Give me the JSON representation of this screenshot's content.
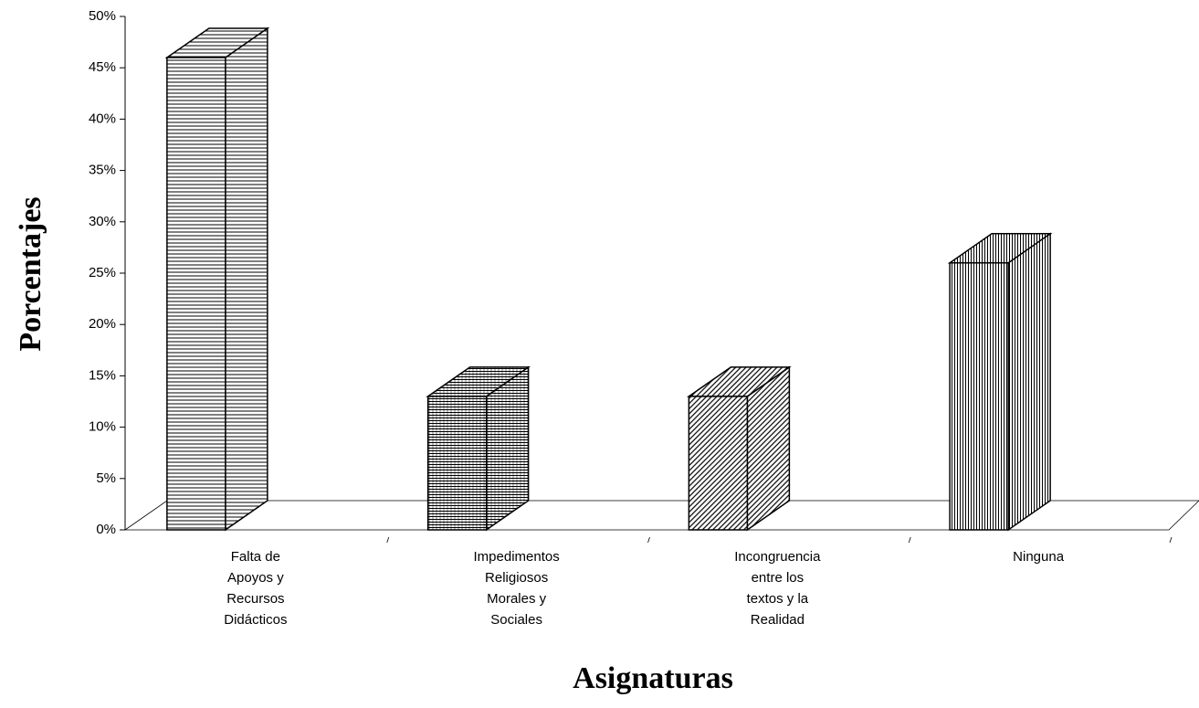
{
  "chart_data": {
    "type": "bar3d",
    "x_label": "Asignaturas",
    "y_label": "Porcentajes",
    "categories": [
      [
        "Falta de",
        "Apoyos y",
        "Recursos",
        "Didácticos"
      ],
      [
        "Impedimentos",
        "Religiosos",
        "Morales y",
        "Sociales"
      ],
      [
        "Incongruencia",
        "entre los",
        "textos y la",
        "Realidad"
      ],
      [
        "Ninguna"
      ]
    ],
    "values": [
      46,
      13,
      13,
      26
    ],
    "ylim": [
      0,
      50
    ],
    "yticks": [
      {
        "value": 0,
        "label": "0%"
      },
      {
        "value": 5,
        "label": "5%"
      },
      {
        "value": 10,
        "label": "10%"
      },
      {
        "value": 15,
        "label": "15%"
      },
      {
        "value": 20,
        "label": "20%"
      },
      {
        "value": 25,
        "label": "25%"
      },
      {
        "value": 30,
        "label": "30%"
      },
      {
        "value": 35,
        "label": "35%"
      },
      {
        "value": 40,
        "label": "40%"
      },
      {
        "value": 45,
        "label": "45%"
      },
      {
        "value": 50,
        "label": "50%"
      }
    ]
  }
}
